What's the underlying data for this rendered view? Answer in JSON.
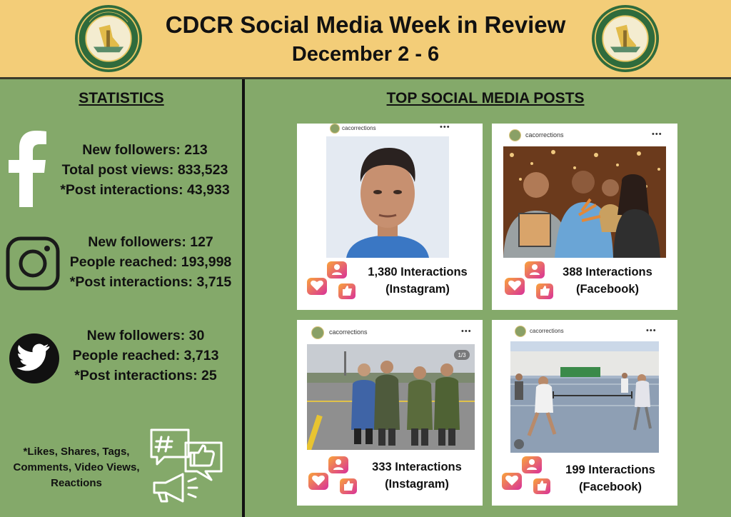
{
  "header": {
    "title": "CDCR Social Media Week in Review",
    "subtitle": "December 2 - 6"
  },
  "statistics": {
    "heading": "STATISTICS",
    "facebook": {
      "icon": "facebook-icon",
      "lines": [
        "New followers: 213",
        "Total post views: 833,523",
        "*Post interactions: 43,933"
      ]
    },
    "instagram": {
      "icon": "instagram-icon",
      "lines": [
        "New followers: 127",
        "People reached: 193,998",
        "*Post interactions: 3,715"
      ]
    },
    "twitter": {
      "icon": "twitter-icon",
      "lines": [
        "New followers: 30",
        "People reached: 3,713",
        "*Post interactions: 25"
      ]
    },
    "footnote": "*Likes, Shares, Tags, Comments, Video Views, Reactions",
    "footnote_icon": "social-chat-icon"
  },
  "posts": {
    "heading": "TOP SOCIAL MEDIA POSTS",
    "items": [
      {
        "handle": "cacorrections",
        "interactions": "1,380 Interactions",
        "platform": "(Instagram)"
      },
      {
        "handle": "cacorrections",
        "interactions": "388 Interactions",
        "platform": "(Facebook)"
      },
      {
        "handle": "cacorrections",
        "interactions": "333 Interactions",
        "platform": "(Instagram)",
        "counter": "1/3"
      },
      {
        "handle": "cacorrections",
        "interactions": "199 Interactions",
        "platform": "(Facebook)"
      }
    ]
  },
  "colors": {
    "header_bg": "#f3cd78",
    "body_bg": "#84a96a",
    "badge_gradient_start": "#f9a53a",
    "badge_gradient_end": "#d8309a"
  }
}
